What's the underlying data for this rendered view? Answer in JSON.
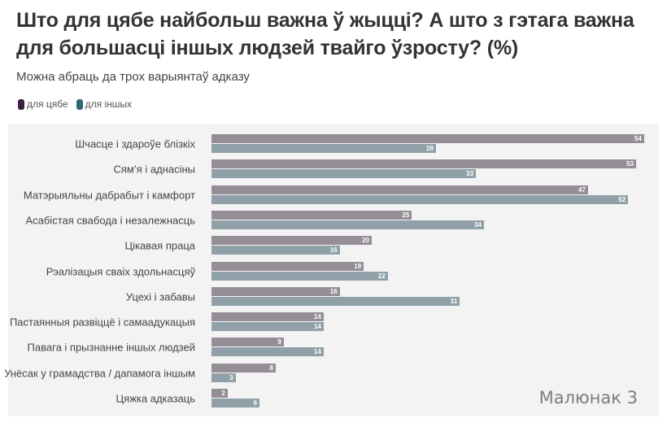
{
  "chart_data": {
    "type": "bar",
    "orientation": "horizontal",
    "title": "Што для цябе найбольш важна ў жыцці? А што з гэтага важна для большасці іншых людзей твайго ўзросту? (%)",
    "subtitle": "Можна абраць да трох варыянтаў адказу",
    "legend": [
      {
        "name": "для цябе",
        "color": "#3b2046"
      },
      {
        "name": "для іншых",
        "color": "#2f6a74"
      }
    ],
    "legend_placement": "top-left",
    "categories": [
      "Шчасце і здароўе блізкіх",
      "Сям’я і аднасіны",
      "Матэрыяльны дабрабыт і камфорт",
      "Асабістая свабода і незалежнасць",
      "Цікавая праца",
      "Рэалізацыя сваіх здольнасцяў",
      "Уцехі і забавы",
      "Пастаянныя развіццё і самаадукацыя",
      "Павага і прызнанне іншых людзей",
      "Унёсак у грамадства / дапамога іншым",
      "Цяжка адказаць"
    ],
    "series": [
      {
        "name": "для цябе",
        "bar_color": "#958e96",
        "values": [
          54,
          53,
          47,
          25,
          20,
          19,
          16,
          14,
          9,
          8,
          2
        ]
      },
      {
        "name": "для іншых",
        "bar_color": "#8fa0a8",
        "values": [
          28,
          33,
          52,
          34,
          16,
          22,
          31,
          14,
          14,
          3,
          6
        ]
      }
    ],
    "xlim": [
      0,
      55
    ],
    "grid": false
  },
  "watermark": "Малюнак 3"
}
